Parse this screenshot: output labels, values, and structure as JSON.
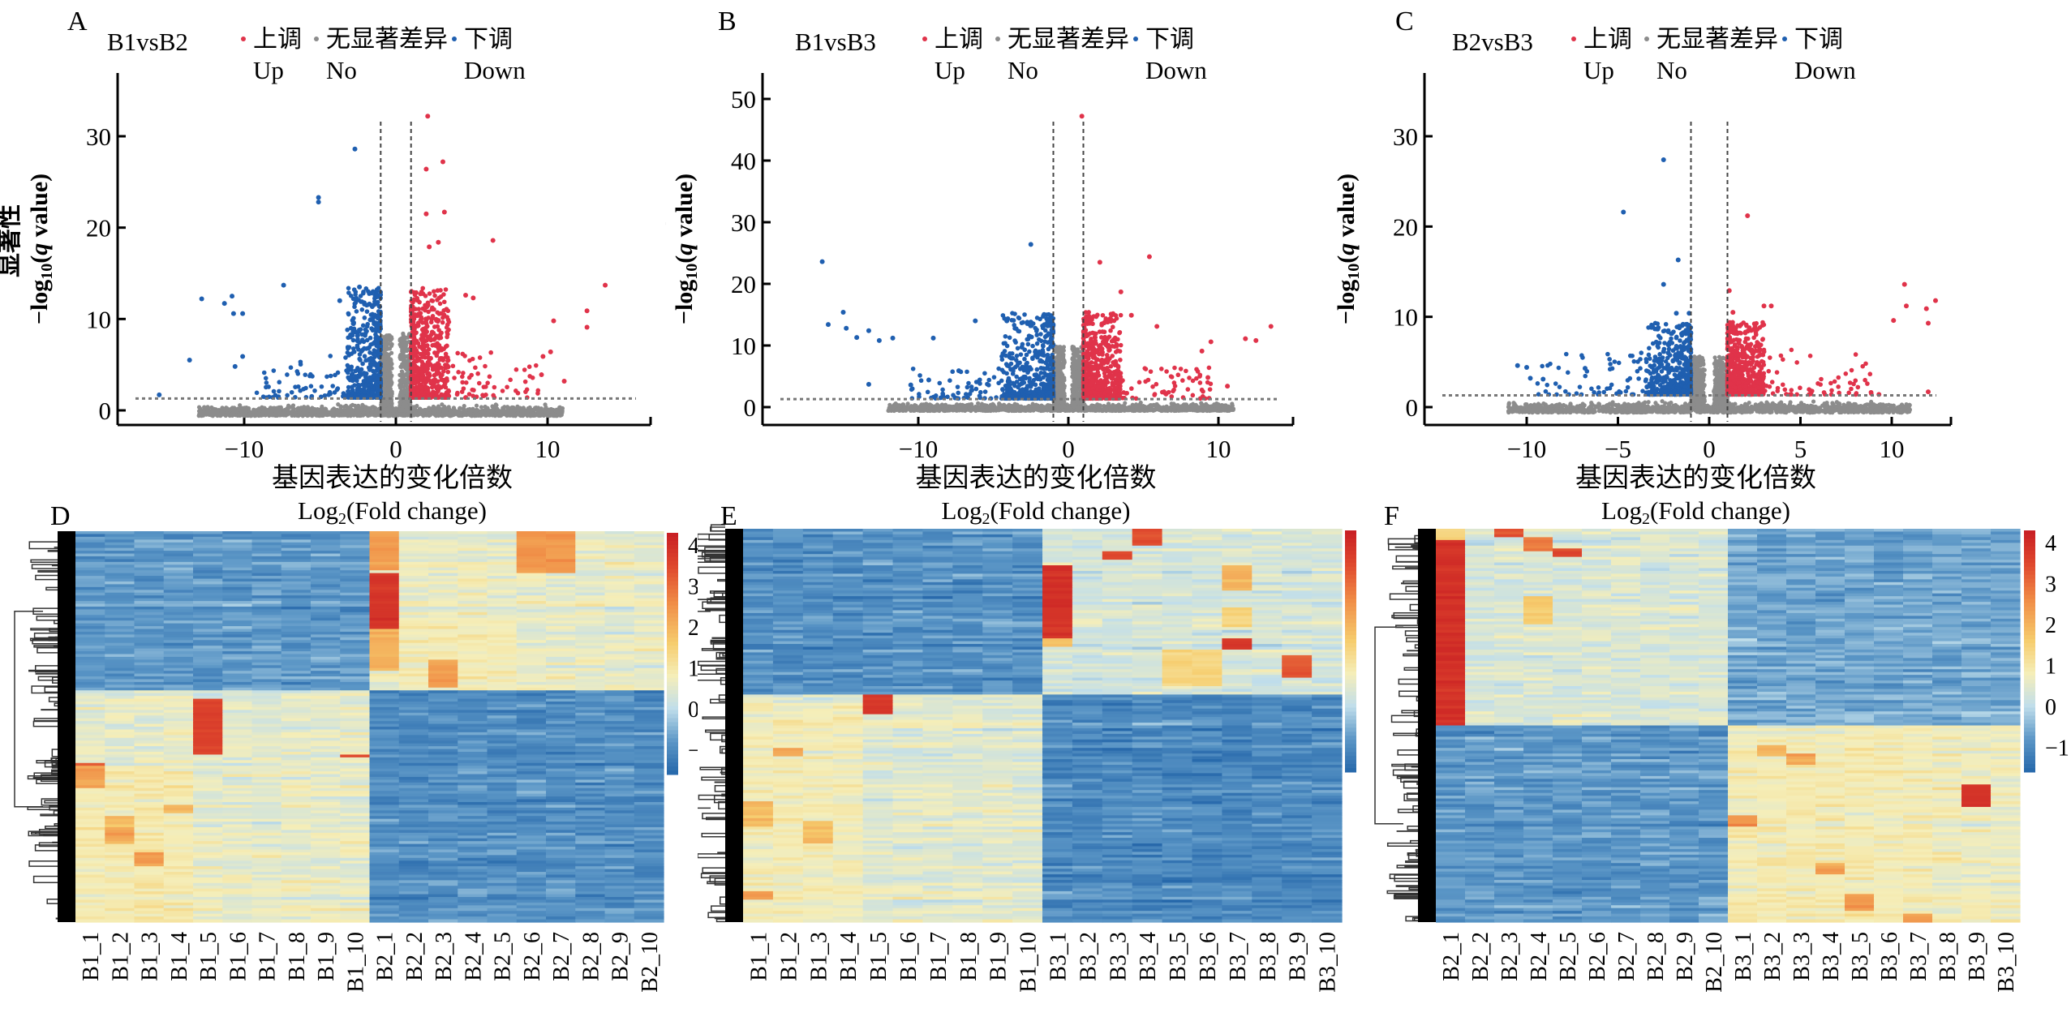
{
  "figure": {
    "panel_letters": [
      "A",
      "B",
      "C",
      "D",
      "E",
      "F"
    ]
  },
  "legend": {
    "items": [
      {
        "cn": "上调",
        "en": "Up",
        "color": "#e0334a"
      },
      {
        "cn": "无显著差异",
        "en": "No",
        "color": "#8c8c8c"
      },
      {
        "cn": "下调",
        "en": "Down",
        "color": "#1f5fb0"
      }
    ]
  },
  "axis_labels": {
    "y_cn": "显著性",
    "y_en": "-log10(q value)",
    "x_cn": "基因表达的变化倍数",
    "x_en": "Log2(Fold change)"
  },
  "chart_data": [
    {
      "id": "A",
      "type": "scatter",
      "title": "B1vsB2",
      "xlabel": "基因表达的变化倍数 Log2(Fold change)",
      "ylabel": "显著性 -log10(q value)",
      "xlim": [
        -17,
        17
      ],
      "ylim": [
        -1.5,
        37
      ],
      "xticks": [
        -10,
        0,
        10
      ],
      "yticks": [
        0,
        10,
        20,
        30
      ],
      "fc_threshold": [
        -1,
        1
      ],
      "q_threshold_line": 1.3,
      "cloud": {
        "down_x": [
          -3.2,
          -1
        ],
        "up_x": [
          1,
          3.5
        ],
        "max_y": 12,
        "ns_x": [
          -13,
          11
        ]
      },
      "outliers_down": [
        [
          -2.7,
          28.6
        ],
        [
          -5.1,
          23.3
        ],
        [
          -5.1,
          22.8
        ],
        [
          -7.4,
          13.7
        ],
        [
          -12.8,
          12.2
        ],
        [
          -10.8,
          12.5
        ],
        [
          -11.3,
          11.7
        ],
        [
          -10.7,
          10.6
        ],
        [
          -10.1,
          10.6
        ],
        [
          -13.6,
          5.5
        ],
        [
          -10.1,
          5.9
        ],
        [
          -10.6,
          4.8
        ],
        [
          -15.6,
          1.7
        ],
        [
          -2.4,
          13.5
        ],
        [
          -3.7,
          12
        ]
      ],
      "outliers_up": [
        [
          2.1,
          32.2
        ],
        [
          3.1,
          27.2
        ],
        [
          2.0,
          26.4
        ],
        [
          2.0,
          21.5
        ],
        [
          3.2,
          21.7
        ],
        [
          6.4,
          18.6
        ],
        [
          2.8,
          18.4
        ],
        [
          2.2,
          17.9
        ],
        [
          13.8,
          13.7
        ],
        [
          12.6,
          10.9
        ],
        [
          12.6,
          9.1
        ],
        [
          10.4,
          9.8
        ],
        [
          10.2,
          6.4
        ],
        [
          9.7,
          5.9
        ],
        [
          11.1,
          3.2
        ],
        [
          9.6,
          3.9
        ],
        [
          4.6,
          12.6
        ],
        [
          5.1,
          12.3
        ]
      ]
    },
    {
      "id": "B",
      "type": "scatter",
      "title": "B1vsB3",
      "xlabel": "基因表达的变化倍数 Log2(Fold change)",
      "ylabel": "显著性 -log10(q value)",
      "xlim": [
        -18,
        16
      ],
      "ylim": [
        -2,
        54
      ],
      "xticks": [
        -10,
        0,
        10
      ],
      "yticks": [
        0,
        10,
        20,
        30,
        40,
        50
      ],
      "fc_threshold": [
        -1,
        1
      ],
      "q_threshold_line": 1.3,
      "cloud": {
        "down_x": [
          -4.5,
          -1
        ],
        "up_x": [
          1,
          3.5
        ],
        "max_y": 14,
        "ns_x": [
          -12,
          11
        ]
      },
      "outliers_down": [
        [
          -2.5,
          26.4
        ],
        [
          -16.4,
          23.6
        ],
        [
          -16,
          13.4
        ],
        [
          -15,
          15.4
        ],
        [
          -14.8,
          12.8
        ],
        [
          -14.1,
          11.3
        ],
        [
          -13.3,
          12.4
        ],
        [
          -12.6,
          10.8
        ],
        [
          -11.7,
          11.2
        ],
        [
          -9,
          11.2
        ],
        [
          -6.2,
          14
        ],
        [
          -4.1,
          14
        ],
        [
          -2.5,
          13.8
        ],
        [
          -13.3,
          3.7
        ],
        [
          -10.5,
          3.6
        ],
        [
          -9.3,
          4.4
        ],
        [
          -7.3,
          5.9
        ]
      ],
      "outliers_up": [
        [
          0.9,
          47.2
        ],
        [
          2.1,
          23.5
        ],
        [
          5.4,
          24.4
        ],
        [
          3.5,
          18.7
        ],
        [
          4.2,
          14.9
        ],
        [
          5.9,
          13.1
        ],
        [
          13.5,
          13.1
        ],
        [
          11.8,
          11.1
        ],
        [
          12.5,
          10.8
        ],
        [
          9.5,
          10.6
        ],
        [
          8.9,
          9.1
        ],
        [
          9.3,
          4.8
        ],
        [
          10.6,
          3.4
        ]
      ]
    },
    {
      "id": "C",
      "type": "scatter",
      "title": "B2vsB3",
      "xlabel": "基因表达的变化倍数 Log2(Fold change)",
      "ylabel": "显著性 -log10(q value)",
      "xlim": [
        -13,
        14
      ],
      "ylim": [
        -1.5,
        31.5
      ],
      "xticks": [
        -10,
        -5,
        0,
        5,
        10
      ],
      "yticks": [
        0,
        10,
        20,
        30
      ],
      "fc_threshold": [
        -1,
        1
      ],
      "q_threshold_line": 1.3,
      "cloud": {
        "down_x": [
          -3.5,
          -1
        ],
        "up_x": [
          1,
          3
        ],
        "max_y": 8,
        "ns_x": [
          -11,
          11
        ]
      },
      "outliers_down": [
        [
          -2.5,
          27.4
        ],
        [
          -4.7,
          21.6
        ],
        [
          -1.7,
          16.3
        ],
        [
          -2.5,
          13.6
        ],
        [
          -10.5,
          4.6
        ],
        [
          -10,
          4.4
        ],
        [
          -9.8,
          3.2
        ],
        [
          -9.1,
          3.1
        ],
        [
          -6.8,
          4.3
        ],
        [
          -3.1,
          8.9
        ],
        [
          -2.9,
          7.2
        ],
        [
          -1.8,
          10.4
        ],
        [
          -1.1,
          10.4
        ]
      ],
      "outliers_up": [
        [
          2.1,
          21.2
        ],
        [
          10.7,
          13.6
        ],
        [
          12.4,
          11.8
        ],
        [
          10.8,
          11.2
        ],
        [
          11.9,
          10.9
        ],
        [
          10.1,
          9.6
        ],
        [
          12,
          9.3
        ],
        [
          3,
          11.2
        ],
        [
          3.4,
          11.2
        ],
        [
          1.1,
          12.9
        ],
        [
          1.3,
          10.5
        ],
        [
          12,
          1.7
        ],
        [
          9.3,
          1.4
        ]
      ]
    },
    {
      "id": "D",
      "type": "heatmap",
      "columns": [
        "B1_1",
        "B1_2",
        "B1_3",
        "B1_4",
        "B1_5",
        "B1_6",
        "B1_7",
        "B1_8",
        "B1_9",
        "B1_10",
        "B2_1",
        "B2_2",
        "B2_3",
        "B2_4",
        "B2_5",
        "B2_6",
        "B2_7",
        "B2_8",
        "B2_9",
        "B2_10"
      ],
      "colorbar": {
        "ticks": [
          4,
          3,
          2,
          1,
          0,
          -1
        ],
        "range": [
          -1.6,
          4.3
        ]
      },
      "cluster_split": 0.41,
      "blocks": [
        {
          "cols": [
            10
          ],
          "rows": [
            0.0,
            0.1
          ],
          "value": 2.3
        },
        {
          "cols": [
            15,
            16
          ],
          "rows": [
            0.0,
            0.11
          ],
          "value": 2.4
        },
        {
          "cols": [
            10
          ],
          "rows": [
            0.11,
            0.25
          ],
          "value": 3.8
        },
        {
          "cols": [
            10
          ],
          "rows": [
            0.25,
            0.36
          ],
          "value": 2.0
        },
        {
          "cols": [
            12
          ],
          "rows": [
            0.33,
            0.4
          ],
          "value": 3.8
        },
        {
          "cols": [
            11,
            12,
            13,
            14
          ],
          "rows": [
            0.22,
            0.4
          ],
          "value": 1.0
        },
        {
          "cols": [
            4
          ],
          "rows": [
            0.43,
            0.57
          ],
          "value": 3.6
        },
        {
          "cols": [
            0
          ],
          "rows": [
            0.59,
            0.66
          ],
          "value": 3.2
        },
        {
          "cols": [
            1
          ],
          "rows": [
            0.73,
            0.8
          ],
          "value": 2.9
        },
        {
          "cols": [
            2
          ],
          "rows": [
            0.82,
            0.86
          ],
          "value": 3.6
        },
        {
          "cols": [
            3
          ],
          "rows": [
            0.7,
            0.72
          ],
          "value": 3.0
        },
        {
          "cols": [
            9
          ],
          "rows": [
            0.57,
            0.58
          ],
          "value": 3.4
        },
        {
          "cols": [
            0,
            1,
            2,
            3
          ],
          "rows": [
            0.6,
            1.0
          ],
          "value": 1.2
        }
      ],
      "group_means": {
        "top_left": -0.8,
        "top_right": 0.6,
        "bottom_left": 0.6,
        "bottom_right": -0.9
      }
    },
    {
      "id": "E",
      "type": "heatmap",
      "columns": [
        "B1_1",
        "B1_2",
        "B1_3",
        "B1_4",
        "B1_5",
        "B1_6",
        "B1_7",
        "B1_8",
        "B1_9",
        "B1_10",
        "B3_1",
        "B3_2",
        "B3_3",
        "B3_4",
        "B3_5",
        "B3_6",
        "B3_7",
        "B3_8",
        "B3_9",
        "B3_10"
      ],
      "colorbar": {
        "ticks": [
          4,
          3,
          2,
          1,
          0,
          -1
        ],
        "range": [
          -1.6,
          4.3
        ]
      },
      "cluster_split": 0.42,
      "blocks": [
        {
          "cols": [
            10
          ],
          "rows": [
            0.09,
            0.28
          ],
          "value": 3.9
        },
        {
          "cols": [
            10
          ],
          "rows": [
            0.28,
            0.3
          ],
          "value": 1.8
        },
        {
          "cols": [
            13
          ],
          "rows": [
            0.0,
            0.04
          ],
          "value": 3.4
        },
        {
          "cols": [
            12
          ],
          "rows": [
            0.06,
            0.08
          ],
          "value": 3.4
        },
        {
          "cols": [
            16
          ],
          "rows": [
            0.09,
            0.16
          ],
          "value": 2.0
        },
        {
          "cols": [
            16
          ],
          "rows": [
            0.2,
            0.25
          ],
          "value": 1.4
        },
        {
          "cols": [
            16
          ],
          "rows": [
            0.28,
            0.31
          ],
          "value": 3.8
        },
        {
          "cols": [
            18
          ],
          "rows": [
            0.32,
            0.38
          ],
          "value": 3.2
        },
        {
          "cols": [
            14,
            15
          ],
          "rows": [
            0.31,
            0.4
          ],
          "value": 1.4
        },
        {
          "cols": [
            4
          ],
          "rows": [
            0.42,
            0.47
          ],
          "value": 3.8
        },
        {
          "cols": [
            1
          ],
          "rows": [
            0.56,
            0.58
          ],
          "value": 3.3
        },
        {
          "cols": [
            0
          ],
          "rows": [
            0.69,
            0.76
          ],
          "value": 2.6
        },
        {
          "cols": [
            2
          ],
          "rows": [
            0.74,
            0.8
          ],
          "value": 2.6
        },
        {
          "cols": [
            0
          ],
          "rows": [
            0.92,
            0.94
          ],
          "value": 3.8
        },
        {
          "cols": [
            0,
            1,
            2,
            3
          ],
          "rows": [
            0.44,
            1.0
          ],
          "value": 1.1
        }
      ],
      "group_means": {
        "top_left": -0.9,
        "top_right": 0.3,
        "bottom_left": 0.5,
        "bottom_right": -1.0
      }
    },
    {
      "id": "F",
      "type": "heatmap",
      "columns": [
        "B2_1",
        "B2_2",
        "B2_3",
        "B2_4",
        "B2_5",
        "B2_6",
        "B2_7",
        "B2_8",
        "B2_9",
        "B2_10",
        "B3_1",
        "B3_2",
        "B3_3",
        "B3_4",
        "B3_5",
        "B3_6",
        "B3_7",
        "B3_8",
        "B3_9",
        "B3_10"
      ],
      "colorbar": {
        "ticks": [
          4,
          3,
          2,
          1,
          0,
          -1
        ],
        "range": [
          -1.6,
          4.3
        ]
      },
      "cluster_split": 0.5,
      "blocks": [
        {
          "cols": [
            0
          ],
          "rows": [
            0.03,
            0.5
          ],
          "value": 3.9
        },
        {
          "cols": [
            0
          ],
          "rows": [
            0.0,
            0.03
          ],
          "value": 1.5
        },
        {
          "cols": [
            2
          ],
          "rows": [
            0.0,
            0.02
          ],
          "value": 3.3
        },
        {
          "cols": [
            3
          ],
          "rows": [
            0.02,
            0.06
          ],
          "value": 2.8
        },
        {
          "cols": [
            4
          ],
          "rows": [
            0.05,
            0.07
          ],
          "value": 3.6
        },
        {
          "cols": [
            3
          ],
          "rows": [
            0.17,
            0.24
          ],
          "value": 1.6
        },
        {
          "cols": [
            11
          ],
          "rows": [
            0.55,
            0.58
          ],
          "value": 3.2
        },
        {
          "cols": [
            12
          ],
          "rows": [
            0.57,
            0.6
          ],
          "value": 3.4
        },
        {
          "cols": [
            18
          ],
          "rows": [
            0.65,
            0.71
          ],
          "value": 3.9
        },
        {
          "cols": [
            10
          ],
          "rows": [
            0.73,
            0.76
          ],
          "value": 3.8
        },
        {
          "cols": [
            13
          ],
          "rows": [
            0.85,
            0.88
          ],
          "value": 3.7
        },
        {
          "cols": [
            14
          ],
          "rows": [
            0.93,
            0.97
          ],
          "value": 3.8
        },
        {
          "cols": [
            16
          ],
          "rows": [
            0.98,
            1.0
          ],
          "value": 3.9
        },
        {
          "cols": [
            10,
            11,
            12,
            13,
            14,
            15,
            16
          ],
          "rows": [
            0.52,
            1.0
          ],
          "value": 1.0
        }
      ],
      "group_means": {
        "top_left": 0.4,
        "top_right": -0.6,
        "bottom_left": -0.8,
        "bottom_right": 0.7
      }
    }
  ]
}
